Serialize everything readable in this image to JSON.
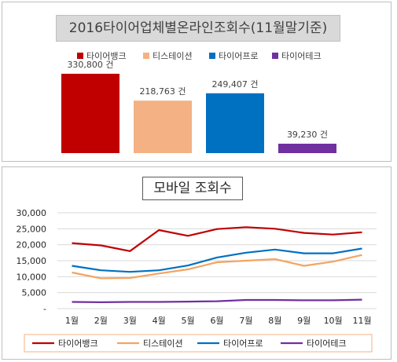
{
  "chart_data": [
    {
      "type": "bar",
      "title": "2016타이어업체별온라인조회수(11월말기준)",
      "categories": [
        "타이어뱅크",
        "티스테이션",
        "타이어프로",
        "타이어테크"
      ],
      "values": [
        330800,
        218763,
        249407,
        39230
      ],
      "data_labels": [
        "330,800 건",
        "218,763 건",
        "249,407 건",
        "39,230 건"
      ],
      "colors": [
        "#c00000",
        "#f4b183",
        "#0070c0",
        "#7030a0"
      ],
      "legend_position": "top",
      "ylim": [
        0,
        360000
      ]
    },
    {
      "type": "line",
      "title": "모바일 조회수",
      "x": [
        "1월",
        "2월",
        "3월",
        "4월",
        "5월",
        "6월",
        "7월",
        "8월",
        "9월",
        "10월",
        "11월"
      ],
      "series": [
        {
          "name": "타이어뱅크",
          "color": "#c00000",
          "values": [
            20500,
            19800,
            18000,
            24600,
            22800,
            24900,
            25500,
            25000,
            23700,
            23200,
            23900
          ]
        },
        {
          "name": "티스테이션",
          "color": "#f4a460",
          "values": [
            11300,
            9500,
            9600,
            11000,
            12300,
            14500,
            15000,
            15500,
            13400,
            14700,
            16800
          ]
        },
        {
          "name": "타이어프로",
          "color": "#0070c0",
          "values": [
            13400,
            12000,
            11500,
            12000,
            13500,
            16000,
            17500,
            18500,
            17300,
            17300,
            18800
          ]
        },
        {
          "name": "타이어테크",
          "color": "#7030a0",
          "values": [
            2100,
            2000,
            2100,
            2100,
            2200,
            2300,
            2700,
            2700,
            2600,
            2600,
            2800
          ]
        }
      ],
      "ylim": [
        0,
        30000
      ],
      "yticks": [
        "30,000",
        "25,000",
        "20,000",
        "15,000",
        "10,000",
        "5,000",
        "-"
      ],
      "grid": true,
      "legend_position": "bottom"
    }
  ]
}
